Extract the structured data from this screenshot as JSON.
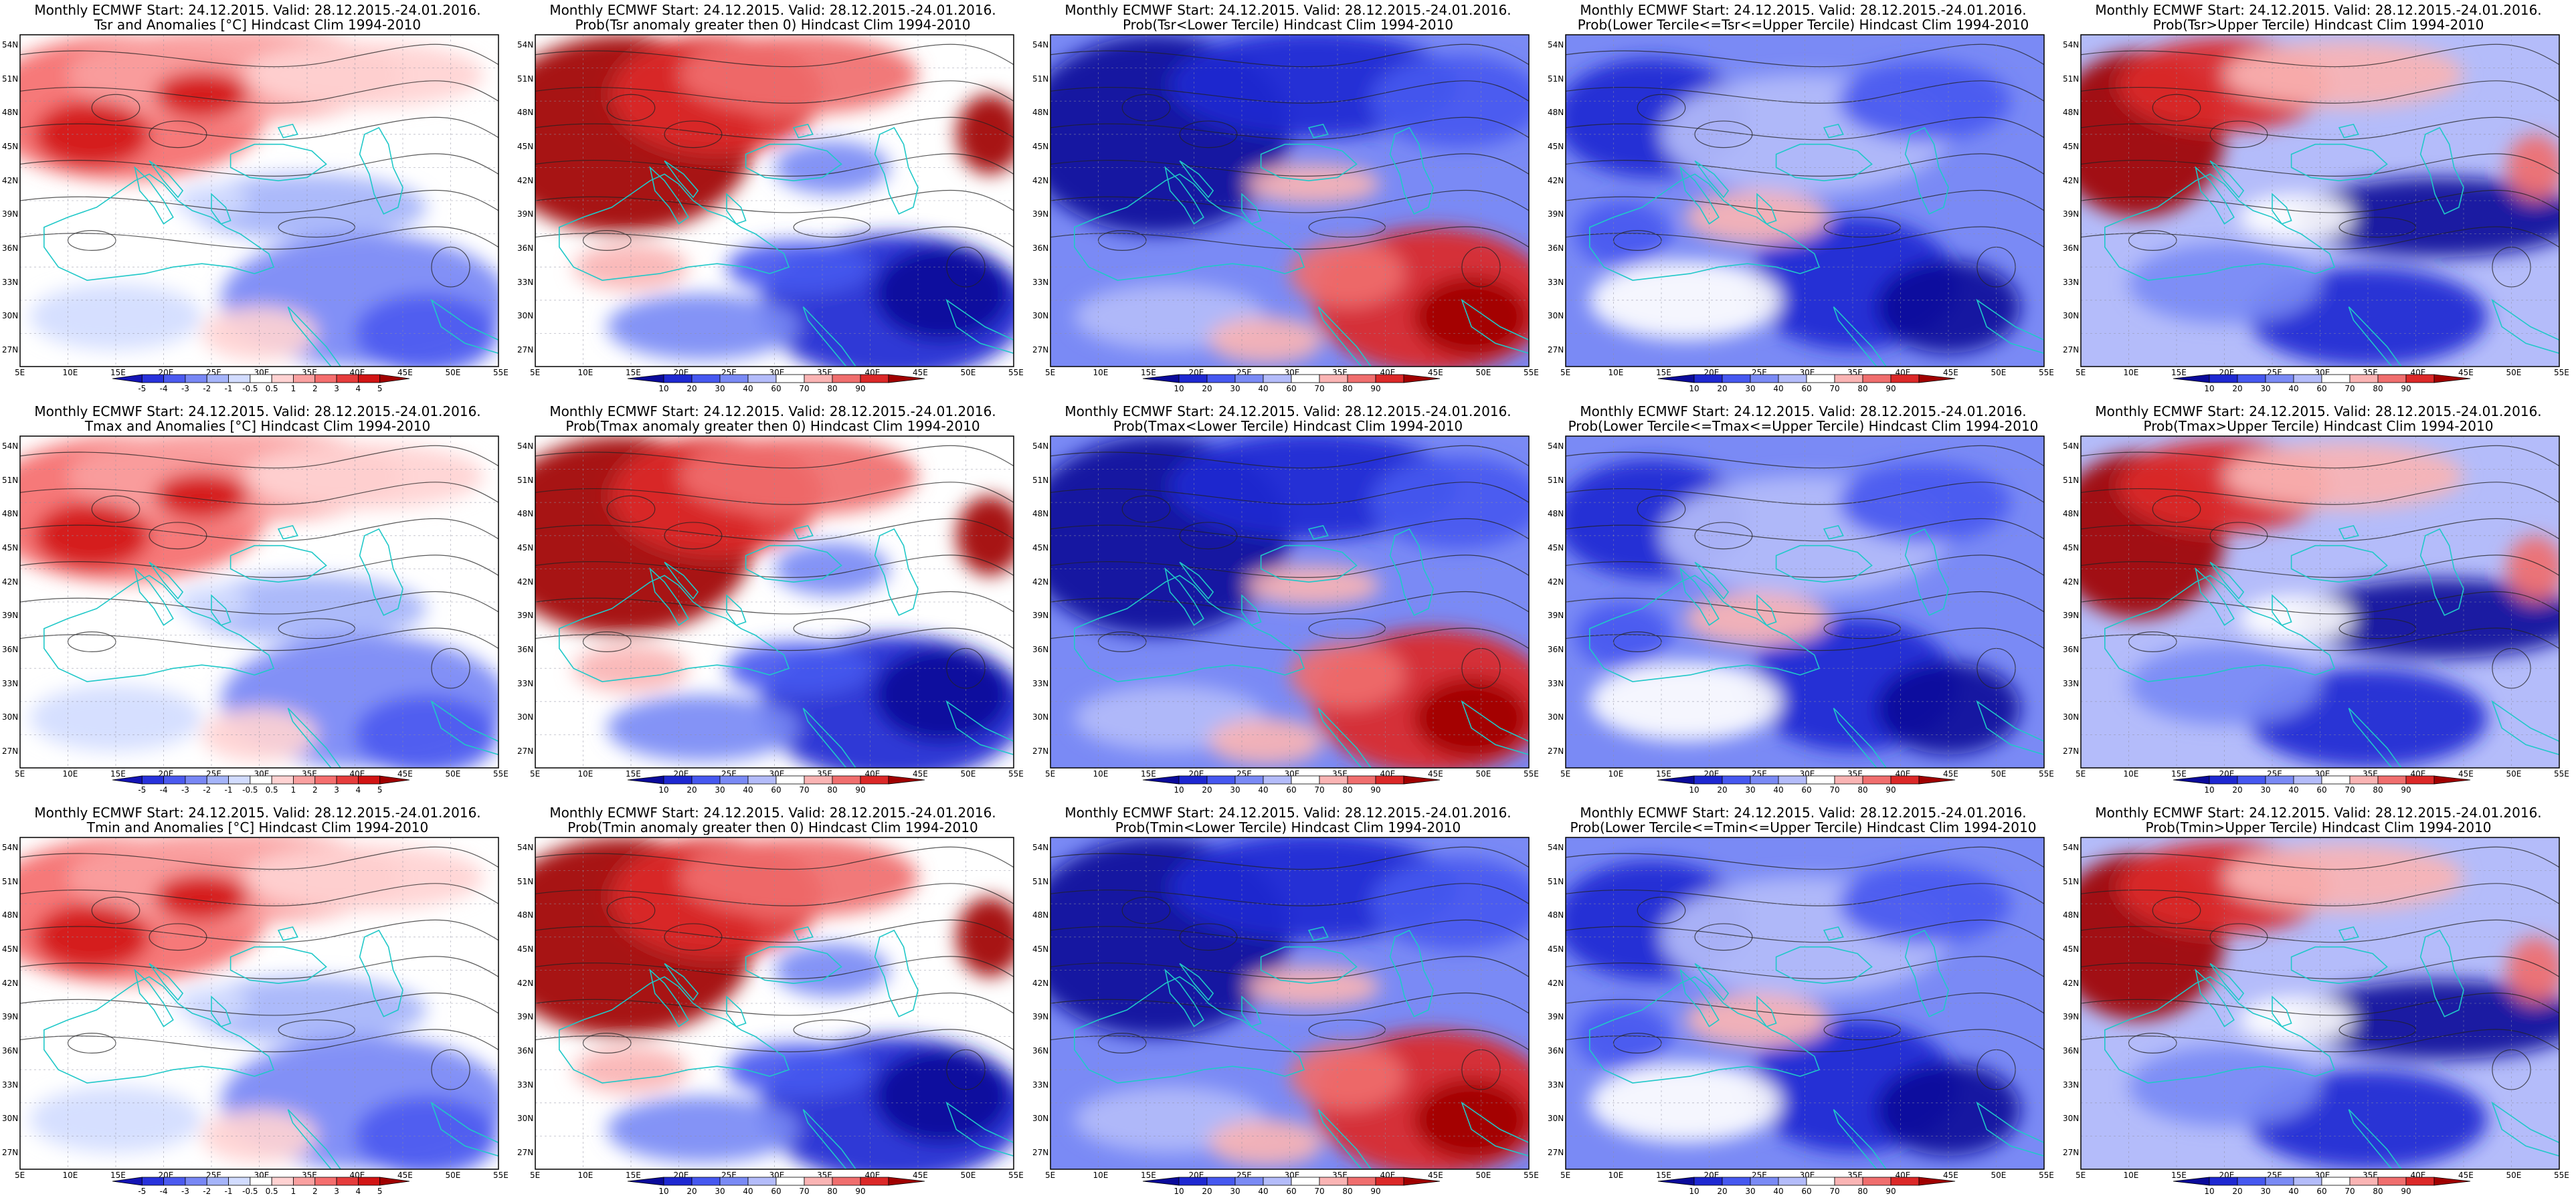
{
  "grid": {
    "rows": 3,
    "cols": 5
  },
  "map_ticks": {
    "lon_labels": [
      "5E",
      "10E",
      "15E",
      "20E",
      "25E",
      "30E",
      "35E",
      "40E",
      "45E",
      "50E",
      "55E"
    ],
    "lat_labels": [
      "54N",
      "51N",
      "48N",
      "45N",
      "42N",
      "39N",
      "36N",
      "33N",
      "30N",
      "27N"
    ]
  },
  "colorbars": {
    "anomaly": {
      "labels": [
        "-5",
        "-4",
        "-3",
        "-2",
        "-1",
        "-0.5",
        "0.5",
        "1",
        "2",
        "3",
        "4",
        "5"
      ],
      "colors": [
        "#1414b4",
        "#2832dc",
        "#4b5af0",
        "#7887f5",
        "#a5b4fa",
        "#d2dcff",
        "#ffffff",
        "#ffd2d2",
        "#faa0a0",
        "#f56e6e",
        "#e63c3c",
        "#d21414",
        "#a00000"
      ]
    },
    "probability": {
      "labels": [
        "10",
        "20",
        "30",
        "40",
        "60",
        "70",
        "80",
        "90"
      ],
      "colors": [
        "#0a0a9a",
        "#1e28d2",
        "#4658f0",
        "#7a8af5",
        "#b4bcfa",
        "#ffffff",
        "#fab4b4",
        "#f06e6e",
        "#dc2828",
        "#a00000"
      ]
    }
  },
  "colors": {
    "coastline": "#20c8c8",
    "contour": "#222222",
    "frame": "#000000",
    "graticule": "#9090a0"
  },
  "panels": [
    {
      "id": "tsr-anom",
      "title1": "Monthly ECMWF Start: 24.12.2015. Valid: 28.12.2015.-24.01.2016.",
      "title2": "Tsr and Anomalies [°C] Hindcast Clim 1994-2010",
      "scale": "anomaly",
      "pattern": "anom"
    },
    {
      "id": "tsr-prob-gt0",
      "title1": "Monthly ECMWF Start: 24.12.2015. Valid: 28.12.2015.-24.01.2016.",
      "title2": "Prob(Tsr anomaly greater then 0) Hindcast Clim 1994-2010",
      "scale": "probability",
      "pattern": "gt0"
    },
    {
      "id": "tsr-prob-lower",
      "title1": "Monthly ECMWF Start: 24.12.2015. Valid: 28.12.2015.-24.01.2016.",
      "title2": "Prob(Tsr<Lower Tercile) Hindcast Clim 1994-2010",
      "scale": "probability",
      "pattern": "lower"
    },
    {
      "id": "tsr-prob-middle",
      "title1": "Monthly ECMWF Start: 24.12.2015. Valid: 28.12.2015.-24.01.2016.",
      "title2": "Prob(Lower Tercile<=Tsr<=Upper Tercile) Hindcast Clim 1994-2010",
      "scale": "probability",
      "pattern": "middle"
    },
    {
      "id": "tsr-prob-upper",
      "title1": "Monthly ECMWF Start: 24.12.2015. Valid: 28.12.2015.-24.01.2016.",
      "title2": "Prob(Tsr>Upper Tercile) Hindcast Clim 1994-2010",
      "scale": "probability",
      "pattern": "upper"
    },
    {
      "id": "tmax-anom",
      "title1": "Monthly ECMWF Start: 24.12.2015. Valid: 28.12.2015.-24.01.2016.",
      "title2": "Tmax and Anomalies [°C] Hindcast Clim 1994-2010",
      "scale": "anomaly",
      "pattern": "anom"
    },
    {
      "id": "tmax-prob-gt0",
      "title1": "Monthly ECMWF Start: 24.12.2015. Valid: 28.12.2015.-24.01.2016.",
      "title2": "Prob(Tmax anomaly greater then 0) Hindcast Clim 1994-2010",
      "scale": "probability",
      "pattern": "gt0"
    },
    {
      "id": "tmax-prob-lower",
      "title1": "Monthly ECMWF Start: 24.12.2015. Valid: 28.12.2015.-24.01.2016.",
      "title2": "Prob(Tmax<Lower Tercile) Hindcast Clim 1994-2010",
      "scale": "probability",
      "pattern": "lower"
    },
    {
      "id": "tmax-prob-middle",
      "title1": "Monthly ECMWF Start: 24.12.2015. Valid: 28.12.2015.-24.01.2016.",
      "title2": "Prob(Lower Tercile<=Tmax<=Upper Tercile) Hindcast Clim 1994-2010",
      "scale": "probability",
      "pattern": "middle"
    },
    {
      "id": "tmax-prob-upper",
      "title1": "Monthly ECMWF Start: 24.12.2015. Valid: 28.12.2015.-24.01.2016.",
      "title2": "Prob(Tmax>Upper Tercile) Hindcast Clim 1994-2010",
      "scale": "probability",
      "pattern": "upper"
    },
    {
      "id": "tmin-anom",
      "title1": "Monthly ECMWF Start: 24.12.2015. Valid: 28.12.2015.-24.01.2016.",
      "title2": "Tmin and Anomalies [°C] Hindcast Clim 1994-2010",
      "scale": "anomaly",
      "pattern": "anom"
    },
    {
      "id": "tmin-prob-gt0",
      "title1": "Monthly ECMWF Start: 24.12.2015. Valid: 28.12.2015.-24.01.2016.",
      "title2": "Prob(Tmin anomaly greater then 0) Hindcast Clim 1994-2010",
      "scale": "probability",
      "pattern": "gt0"
    },
    {
      "id": "tmin-prob-lower",
      "title1": "Monthly ECMWF Start: 24.12.2015. Valid: 28.12.2015.-24.01.2016.",
      "title2": "Prob(Tmin<Lower Tercile) Hindcast Clim 1994-2010",
      "scale": "probability",
      "pattern": "lower"
    },
    {
      "id": "tmin-prob-middle",
      "title1": "Monthly ECMWF Start: 24.12.2015. Valid: 28.12.2015.-24.01.2016.",
      "title2": "Prob(Lower Tercile<=Tmin<=Upper Tercile) Hindcast Clim 1994-2010",
      "scale": "probability",
      "pattern": "middle"
    },
    {
      "id": "tmin-prob-upper",
      "title1": "Monthly ECMWF Start: 24.12.2015. Valid: 28.12.2015.-24.01.2016.",
      "title2": "Prob(Tmin>Upper Tercile) Hindcast Clim 1994-2010",
      "scale": "probability",
      "pattern": "upper"
    }
  ]
}
